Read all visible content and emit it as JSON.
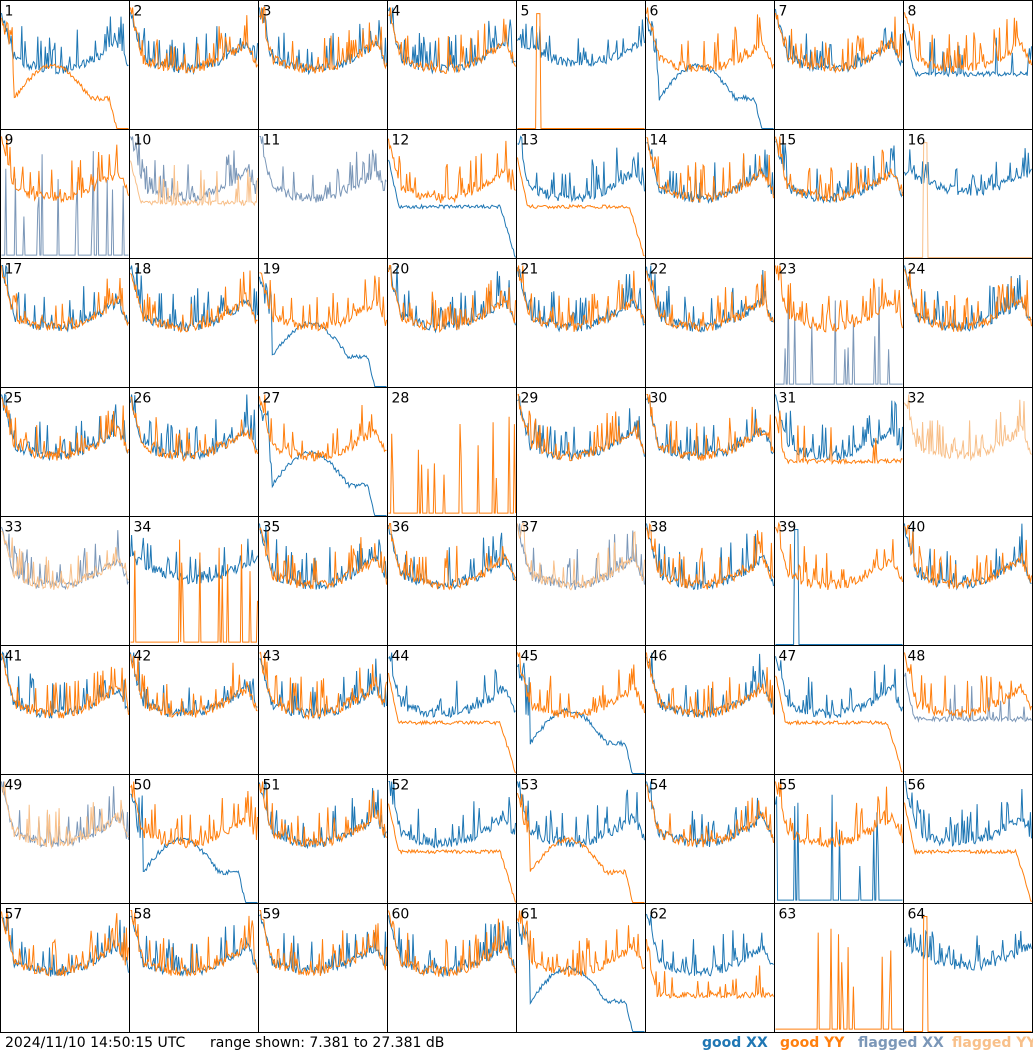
{
  "footer": {
    "timestamp": "2024/11/10 14:50:15 UTC",
    "range_text": "range shown: 7.381 to 27.381 dB"
  },
  "legend": [
    {
      "word": "good",
      "pol": "XX",
      "color": "#1f77b4"
    },
    {
      "word": "good",
      "pol": "YY",
      "color": "#ff7f0e"
    },
    {
      "word": "flagged",
      "pol": "XX",
      "color": "#7b97b8"
    },
    {
      "word": "flagged",
      "pol": "YY",
      "color": "#f8c08a"
    }
  ],
  "colors": {
    "good_xx": "#1f77b4",
    "good_yy": "#ff7f0e",
    "flagged_xx": "#7b97b8",
    "flagged_yy": "#f8c08a"
  },
  "chart_data": {
    "type": "line",
    "layout": "small-multiples 8x8",
    "y_range_db": [
      7.381,
      27.381
    ],
    "series_names": [
      "XX",
      "YY"
    ],
    "panels": [
      {
        "id": "1",
        "xx": "pass",
        "xx_shape": "norm",
        "yy": "good",
        "yy_shape": "bump_drop"
      },
      {
        "id": "2",
        "xx": "good",
        "xx_shape": "norm",
        "yy": "good",
        "yy_shape": "norm"
      },
      {
        "id": "3",
        "xx": "good",
        "xx_shape": "norm",
        "yy": "good",
        "yy_shape": "norm"
      },
      {
        "id": "4",
        "xx": "good",
        "xx_shape": "norm",
        "yy": "good",
        "yy_shape": "norm"
      },
      {
        "id": "5",
        "xx": "good",
        "xx_shape": "high",
        "yy": "good",
        "yy_shape": "dead_spike"
      },
      {
        "id": "6",
        "xx": "good",
        "xx_shape": "bump_drop",
        "yy": "good",
        "yy_shape": "norm"
      },
      {
        "id": "7",
        "xx": "good",
        "xx_shape": "norm",
        "yy": "good",
        "yy_shape": "norm"
      },
      {
        "id": "8",
        "xx": "good",
        "xx_shape": "mid",
        "yy": "good",
        "yy_shape": "norm"
      },
      {
        "id": "9",
        "xx": "flagged",
        "xx_shape": "spikes_low",
        "yy": "good",
        "yy_shape": "norm"
      },
      {
        "id": "10",
        "xx": "flagged",
        "xx_shape": "norm",
        "yy": "flagged",
        "yy_shape": "mid"
      },
      {
        "id": "11",
        "xx": "flagged",
        "xx_shape": "norm",
        "yy": "flagged",
        "yy_shape": "bump"
      },
      {
        "id": "12",
        "xx": "good",
        "xx_shape": "mid_drop",
        "yy": "good",
        "yy_shape": "norm"
      },
      {
        "id": "13",
        "xx": "good",
        "xx_shape": "norm",
        "yy": "good",
        "yy_shape": "mid_drop"
      },
      {
        "id": "14",
        "xx": "good",
        "xx_shape": "norm",
        "yy": "good",
        "yy_shape": "norm"
      },
      {
        "id": "15",
        "xx": "good",
        "xx_shape": "norm",
        "yy": "good",
        "yy_shape": "norm"
      },
      {
        "id": "16",
        "xx": "good",
        "xx_shape": "high",
        "yy": "flagged",
        "yy_shape": "dead_spike"
      },
      {
        "id": "17",
        "xx": "good",
        "xx_shape": "norm",
        "yy": "good",
        "yy_shape": "norm"
      },
      {
        "id": "18",
        "xx": "good",
        "xx_shape": "norm",
        "yy": "good",
        "yy_shape": "norm"
      },
      {
        "id": "19",
        "xx": "good",
        "xx_shape": "bump_drop",
        "yy": "good",
        "yy_shape": "norm"
      },
      {
        "id": "20",
        "xx": "good",
        "xx_shape": "norm",
        "yy": "good",
        "yy_shape": "norm"
      },
      {
        "id": "21",
        "xx": "good",
        "xx_shape": "norm",
        "yy": "good",
        "yy_shape": "norm"
      },
      {
        "id": "22",
        "xx": "good",
        "xx_shape": "norm",
        "yy": "good",
        "yy_shape": "norm"
      },
      {
        "id": "23",
        "xx": "flagged",
        "xx_shape": "spikes_low",
        "yy": "good",
        "yy_shape": "norm"
      },
      {
        "id": "24",
        "xx": "good",
        "xx_shape": "norm",
        "yy": "good",
        "yy_shape": "norm"
      },
      {
        "id": "25",
        "xx": "good",
        "xx_shape": "norm",
        "yy": "good",
        "yy_shape": "norm"
      },
      {
        "id": "26",
        "xx": "good",
        "xx_shape": "norm",
        "yy": "good",
        "yy_shape": "norm"
      },
      {
        "id": "27",
        "xx": "good",
        "xx_shape": "bump_drop",
        "yy": "good",
        "yy_shape": "norm"
      },
      {
        "id": "28",
        "xx": "none",
        "xx_shape": "none",
        "yy": "good",
        "yy_shape": "spikes_low"
      },
      {
        "id": "29",
        "xx": "good",
        "xx_shape": "norm",
        "yy": "good",
        "yy_shape": "norm"
      },
      {
        "id": "30",
        "xx": "good",
        "xx_shape": "norm",
        "yy": "good",
        "yy_shape": "norm"
      },
      {
        "id": "31",
        "xx": "good",
        "xx_shape": "norm",
        "yy": "good",
        "yy_shape": "mid"
      },
      {
        "id": "32",
        "xx": "none",
        "xx_shape": "none",
        "yy": "flagged",
        "yy_shape": "norm"
      },
      {
        "id": "33",
        "xx": "flagged",
        "xx_shape": "norm",
        "yy": "flagged",
        "yy_shape": "norm"
      },
      {
        "id": "34",
        "xx": "good",
        "xx_shape": "high",
        "yy": "good",
        "yy_shape": "spikes_low"
      },
      {
        "id": "35",
        "xx": "good",
        "xx_shape": "norm",
        "yy": "good",
        "yy_shape": "norm"
      },
      {
        "id": "36",
        "xx": "good",
        "xx_shape": "norm",
        "yy": "good",
        "yy_shape": "norm"
      },
      {
        "id": "37",
        "xx": "flagged",
        "xx_shape": "norm",
        "yy": "flagged",
        "yy_shape": "norm"
      },
      {
        "id": "38",
        "xx": "good",
        "xx_shape": "norm",
        "yy": "good",
        "yy_shape": "norm"
      },
      {
        "id": "39",
        "xx": "good",
        "xx_shape": "dead_spike",
        "yy": "good",
        "yy_shape": "norm"
      },
      {
        "id": "40",
        "xx": "good",
        "xx_shape": "norm",
        "yy": "good",
        "yy_shape": "norm"
      },
      {
        "id": "41",
        "xx": "good",
        "xx_shape": "norm",
        "yy": "good",
        "yy_shape": "norm"
      },
      {
        "id": "42",
        "xx": "good",
        "xx_shape": "norm",
        "yy": "good",
        "yy_shape": "norm"
      },
      {
        "id": "43",
        "xx": "good",
        "xx_shape": "norm",
        "yy": "good",
        "yy_shape": "norm"
      },
      {
        "id": "44",
        "xx": "good",
        "xx_shape": "norm",
        "yy": "good",
        "yy_shape": "mid_drop"
      },
      {
        "id": "45",
        "xx": "good",
        "xx_shape": "bump_drop",
        "yy": "good",
        "yy_shape": "norm"
      },
      {
        "id": "46",
        "xx": "good",
        "xx_shape": "norm",
        "yy": "good",
        "yy_shape": "norm"
      },
      {
        "id": "47",
        "xx": "good",
        "xx_shape": "norm",
        "yy": "good",
        "yy_shape": "mid_drop"
      },
      {
        "id": "48",
        "xx": "flagged",
        "xx_shape": "mid",
        "yy": "good",
        "yy_shape": "norm"
      },
      {
        "id": "49",
        "xx": "flagged",
        "xx_shape": "norm",
        "yy": "flagged",
        "yy_shape": "norm"
      },
      {
        "id": "50",
        "xx": "good",
        "xx_shape": "bump_drop",
        "yy": "good",
        "yy_shape": "norm"
      },
      {
        "id": "51",
        "xx": "good",
        "xx_shape": "norm",
        "yy": "good",
        "yy_shape": "norm"
      },
      {
        "id": "52",
        "xx": "good",
        "xx_shape": "norm",
        "yy": "good",
        "yy_shape": "mid_drop"
      },
      {
        "id": "53",
        "xx": "good",
        "xx_shape": "norm",
        "yy": "good",
        "yy_shape": "bump_drop"
      },
      {
        "id": "54",
        "xx": "good",
        "xx_shape": "norm",
        "yy": "good",
        "yy_shape": "norm"
      },
      {
        "id": "55",
        "xx": "good",
        "xx_shape": "spikes_low",
        "yy": "good",
        "yy_shape": "norm"
      },
      {
        "id": "56",
        "xx": "good",
        "xx_shape": "norm",
        "yy": "good",
        "yy_shape": "mid_drop"
      },
      {
        "id": "57",
        "xx": "good",
        "xx_shape": "norm",
        "yy": "good",
        "yy_shape": "norm"
      },
      {
        "id": "58",
        "xx": "good",
        "xx_shape": "norm",
        "yy": "good",
        "yy_shape": "norm"
      },
      {
        "id": "59",
        "xx": "good",
        "xx_shape": "norm",
        "yy": "good",
        "yy_shape": "norm"
      },
      {
        "id": "60",
        "xx": "good",
        "xx_shape": "norm",
        "yy": "good",
        "yy_shape": "norm"
      },
      {
        "id": "61",
        "xx": "good",
        "xx_shape": "bump_drop",
        "yy": "good",
        "yy_shape": "norm"
      },
      {
        "id": "62",
        "xx": "good",
        "xx_shape": "norm",
        "yy": "good",
        "yy_shape": "low"
      },
      {
        "id": "63",
        "xx": "none",
        "xx_shape": "none",
        "yy": "good",
        "yy_shape": "spikes_low"
      },
      {
        "id": "64",
        "xx": "good",
        "xx_shape": "high",
        "yy": "good",
        "yy_shape": "dead_spike"
      }
    ]
  }
}
